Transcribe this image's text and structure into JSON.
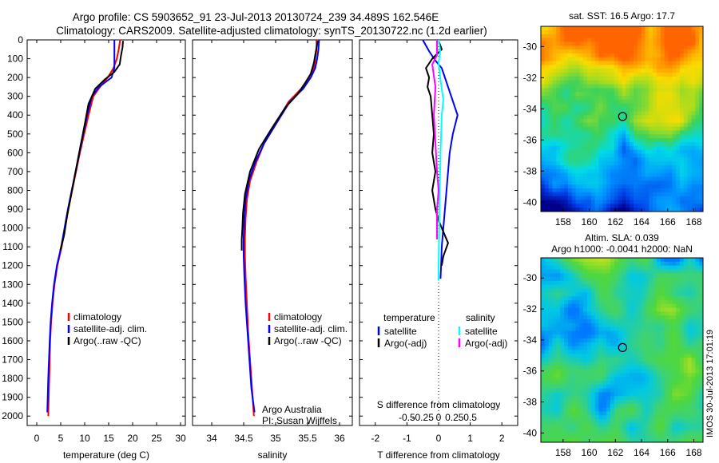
{
  "title_line1": "Argo profile: CS 5903652_91 23-Jul-2013 20130724_239 34.489S 162.546E",
  "title_line2": "Climatology: CARS2009. Satellite-adjusted climatology: synTS_20130722.nc (1.2d earlier)",
  "side_label": "IMOS 30-Jul-2013 17:01:19",
  "colors": {
    "climatology": "#ff0000",
    "satellite": "#0000ff",
    "argo": "#000000",
    "satellite_s": "#00ffff",
    "argo_s": "#ff00ff"
  },
  "chart_data": [
    {
      "id": "temperature",
      "type": "line",
      "xlabel": "temperature (deg C)",
      "xlim": [
        -2,
        31
      ],
      "ylim": [
        0,
        2050
      ],
      "xticks": [
        0,
        5,
        10,
        15,
        20,
        25,
        30
      ],
      "yticks": [
        0,
        100,
        200,
        300,
        400,
        500,
        600,
        700,
        800,
        900,
        1000,
        1100,
        1200,
        1300,
        1400,
        1500,
        1600,
        1700,
        1800,
        1900,
        2000
      ],
      "legend": [
        "climatology",
        "satellite-adj. clim.",
        "Argo(..raw -QC)"
      ],
      "series": [
        {
          "name": "climatology",
          "color": "#ff0000",
          "x": [
            17.4,
            17.1,
            16.7,
            16.0,
            14.8,
            13.2,
            11.8,
            10.8,
            9.9,
            9.0,
            8.2,
            7.4,
            6.6,
            5.9,
            5.2,
            4.3,
            3.7,
            3.3,
            3.0,
            2.8,
            2.6,
            2.4
          ],
          "y": [
            0,
            50,
            100,
            150,
            200,
            250,
            300,
            400,
            500,
            600,
            700,
            800,
            900,
            1000,
            1100,
            1200,
            1300,
            1400,
            1500,
            1600,
            1800,
            2000
          ]
        },
        {
          "name": "satellite",
          "color": "#0000ff",
          "x": [
            16.2,
            16.2,
            16.2,
            16.2,
            15.6,
            13.0,
            11.5,
            10.5,
            9.7,
            8.9,
            8.1,
            7.3,
            6.5,
            5.8,
            5.1,
            4.2,
            3.6,
            3.2,
            2.9,
            2.7,
            2.4,
            2.2
          ],
          "y": [
            0,
            50,
            100,
            150,
            200,
            250,
            300,
            400,
            500,
            600,
            700,
            800,
            900,
            1000,
            1100,
            1200,
            1300,
            1400,
            1500,
            1600,
            1800,
            1980
          ]
        },
        {
          "name": "Argo",
          "color": "#000000",
          "x": [
            18.0,
            17.9,
            17.6,
            17.3,
            16.2,
            14.2,
            12.2,
            10.8,
            10.0,
            9.0,
            8.1,
            7.2,
            6.3,
            5.7,
            4.9
          ],
          "y": [
            5,
            40,
            80,
            130,
            170,
            210,
            260,
            340,
            450,
            580,
            700,
            820,
            940,
            1040,
            1120
          ]
        }
      ]
    },
    {
      "id": "salinity",
      "type": "line",
      "xlabel": "salinity",
      "xlim": [
        33.7,
        36.2
      ],
      "ylim": [
        0,
        2050
      ],
      "xticks": [
        34,
        34.5,
        35,
        35.5,
        36
      ],
      "legend": [
        "climatology",
        "satellite-adj. clim.",
        "Argo(..raw -QC)"
      ],
      "annotation": [
        "Argo Australia",
        "PI: Susan Wijffels"
      ],
      "series": [
        {
          "name": "climatology",
          "color": "#ff0000",
          "x": [
            35.64,
            35.64,
            35.62,
            35.6,
            35.52,
            35.4,
            35.2,
            35.0,
            34.82,
            34.7,
            34.6,
            34.55,
            34.53,
            34.52,
            34.52,
            34.53,
            34.55,
            34.57,
            34.6,
            34.63,
            34.66
          ],
          "y": [
            0,
            50,
            100,
            150,
            200,
            260,
            330,
            450,
            550,
            650,
            750,
            850,
            950,
            1050,
            1150,
            1250,
            1400,
            1550,
            1700,
            1850,
            2000
          ]
        },
        {
          "name": "satellite",
          "color": "#0000ff",
          "x": [
            35.68,
            35.67,
            35.65,
            35.62,
            35.55,
            35.43,
            35.22,
            35.0,
            34.82,
            34.68,
            34.58,
            34.53,
            34.51,
            34.5,
            34.5,
            34.51,
            34.53,
            34.56,
            34.59,
            34.62,
            34.67
          ],
          "y": [
            0,
            50,
            100,
            150,
            200,
            260,
            330,
            450,
            550,
            650,
            750,
            850,
            950,
            1050,
            1150,
            1250,
            1400,
            1550,
            1700,
            1850,
            1980
          ]
        },
        {
          "name": "Argo",
          "color": "#000000",
          "x": [
            35.66,
            35.63,
            35.6,
            35.55,
            35.46,
            35.34,
            35.15,
            34.94,
            34.74,
            34.6,
            34.52,
            34.49,
            34.48,
            34.47,
            34.47
          ],
          "y": [
            5,
            60,
            120,
            180,
            230,
            290,
            360,
            470,
            580,
            700,
            820,
            920,
            1000,
            1060,
            1120
          ]
        }
      ]
    },
    {
      "id": "difference",
      "type": "line",
      "xlabel": "T difference from climatology",
      "xlabel_top": "S difference from climatology",
      "xlim": [
        -2.5,
        2.5
      ],
      "ylim": [
        0,
        2050
      ],
      "xticks": [
        -2,
        -1,
        0,
        1,
        2
      ],
      "xticks_s": [
        "-0.5",
        "-0.25",
        "0",
        "0.25",
        "0.5"
      ],
      "legend_titles": [
        "temperature",
        "salinity"
      ],
      "legend": [
        "satellite",
        "Argo(-adj)",
        "satellite",
        "Argo(-adj)"
      ],
      "series": [
        {
          "name": "T satellite",
          "color": "#0000ff",
          "x": [
            -0.5,
            -0.3,
            -0.1,
            0.1,
            0.2,
            0.3,
            0.4,
            0.6,
            0.45,
            0.35,
            0.3,
            0.25,
            0.2,
            0.15,
            0.1,
            0.08,
            0.06
          ],
          "y": [
            0,
            60,
            110,
            150,
            200,
            250,
            300,
            400,
            500,
            600,
            700,
            800,
            900,
            1000,
            1100,
            1200,
            1270
          ]
        },
        {
          "name": "T Argo",
          "color": "#000000",
          "x": [
            0.0,
            0.1,
            -0.2,
            -0.4,
            -0.3,
            -0.35,
            -0.25,
            -0.2,
            -0.15,
            -0.2,
            -0.1,
            -0.2,
            -0.1,
            0.0,
            0.1,
            0.2,
            0.3,
            0.15,
            0.1
          ],
          "y": [
            5,
            50,
            100,
            150,
            200,
            250,
            300,
            400,
            500,
            600,
            700,
            800,
            900,
            960,
            1000,
            1040,
            1080,
            1150,
            1200
          ]
        },
        {
          "name": "S satellite",
          "color": "#00ffff",
          "x": [
            0.0,
            0.05,
            0.0,
            0.05,
            0.1,
            0.15,
            0.1,
            0.08,
            0.06,
            0.05,
            0.03,
            0.02,
            0.02,
            0.01,
            0.0,
            0.0
          ],
          "y": [
            0,
            60,
            120,
            200,
            260,
            320,
            400,
            500,
            600,
            700,
            800,
            900,
            1000,
            1100,
            1200,
            1280
          ]
        },
        {
          "name": "S Argo",
          "color": "#ff00ff",
          "x": [
            -0.05,
            -0.05,
            -0.2,
            -0.1,
            -0.15,
            -0.1,
            -0.05,
            0.0,
            -0.05,
            -0.05,
            -0.05
          ],
          "y": [
            0,
            80,
            130,
            250,
            400,
            550,
            700,
            800,
            900,
            1000,
            1060
          ]
        }
      ]
    }
  ],
  "maps": [
    {
      "id": "sst",
      "type": "heatmap",
      "title": "sat. SST: 16.5 Argo: 17.7",
      "xticks": [
        158,
        160,
        162,
        164,
        166,
        168
      ],
      "yticks": [
        -30,
        -32,
        -34,
        -36,
        -38,
        -40
      ],
      "xlim": [
        156.3,
        168.7
      ],
      "ylim": [
        -40.6,
        -28.7
      ],
      "marker": {
        "lon": 162.55,
        "lat": -34.49
      }
    },
    {
      "id": "sla",
      "type": "heatmap",
      "title_line1": "Altim. SLA: 0.039",
      "title_line2": "Argo h1000: -0.0041 h2000: NaN",
      "xticks": [
        158,
        160,
        162,
        164,
        166,
        168
      ],
      "yticks": [
        -30,
        -32,
        -34,
        -36,
        -38,
        -40
      ],
      "xlim": [
        156.3,
        168.7
      ],
      "ylim": [
        -40.6,
        -28.7
      ],
      "marker": {
        "lon": 162.55,
        "lat": -34.49
      }
    }
  ]
}
